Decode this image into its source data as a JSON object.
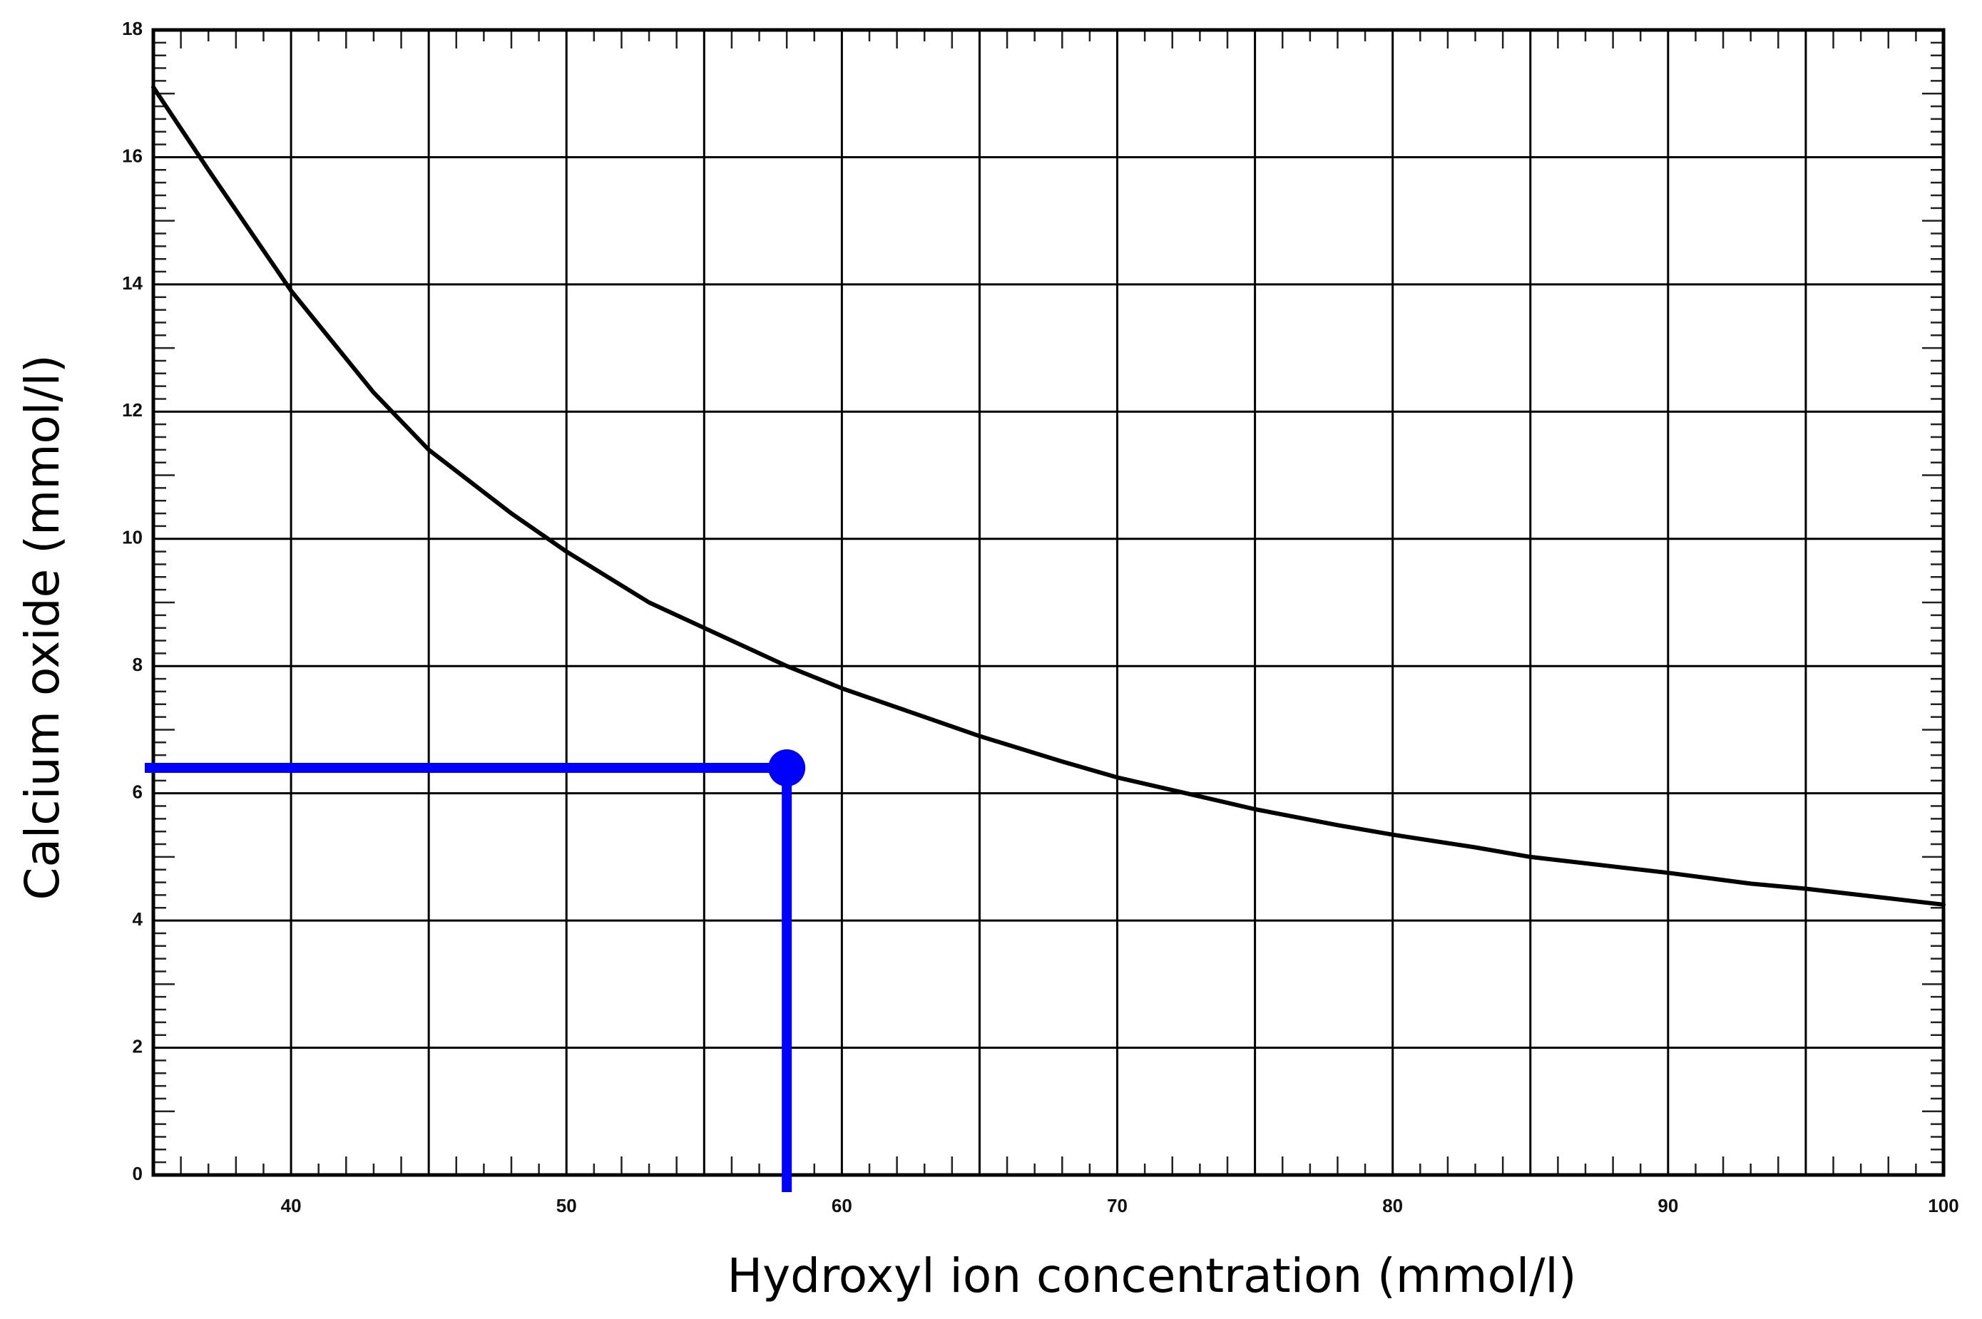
{
  "chart_data": {
    "type": "line",
    "title": "",
    "xlabel": "Hydroxyl ion concentration (mmol/l)",
    "ylabel": "Calcium oxide (mmol/l)",
    "xlim": [
      35,
      100
    ],
    "ylim": [
      0,
      18
    ],
    "x_ticks": [
      40,
      50,
      60,
      70,
      80,
      90,
      100
    ],
    "y_ticks": [
      0,
      2,
      4,
      6,
      8,
      10,
      12,
      14,
      16,
      18
    ],
    "grid": true,
    "legend": "none",
    "series": [
      {
        "color": "#000000",
        "x": [
          35,
          37,
          40,
          43,
          45,
          48,
          50,
          53,
          55,
          58,
          60,
          63,
          65,
          68,
          70,
          73,
          75,
          78,
          80,
          83,
          85,
          88,
          90,
          93,
          95,
          98,
          100
        ],
        "y": [
          17.1,
          15.8,
          13.9,
          12.3,
          11.4,
          10.4,
          9.8,
          9.0,
          8.6,
          8.0,
          7.65,
          7.2,
          6.9,
          6.5,
          6.25,
          5.95,
          5.75,
          5.5,
          5.35,
          5.15,
          5.0,
          4.85,
          4.75,
          4.58,
          4.5,
          4.35,
          4.25
        ]
      }
    ],
    "highlight": {
      "x": 58,
      "y": 6.4,
      "color": "#0000ff"
    }
  }
}
